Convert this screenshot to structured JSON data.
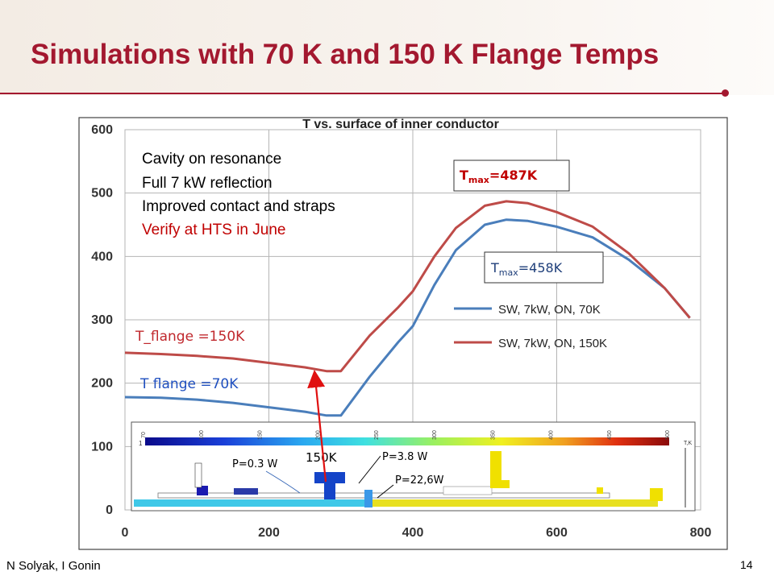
{
  "slide": {
    "title": "Simulations with 70 K and 150 K Flange Temps",
    "author": "N Solyak, I Gonin",
    "page_number": "14"
  },
  "notes": {
    "line1": "Cavity on resonance",
    "line2": "Full 7 kW reflection",
    "line3": "Improved contact and straps",
    "line4": "Verify at HTS in June"
  },
  "annotations": {
    "tmax_150_label": "T",
    "tmax_150_sub": "max",
    "tmax_150_value": "=487K",
    "tmax_70_label": "T",
    "tmax_70_sub": "max",
    "tmax_70_value": "=458K",
    "tflange_150": "T_flange =150K",
    "tflange_70": "T flange =70K",
    "label_150k": "150K",
    "p1": "P=0.3 W",
    "p2": "P=3.8 W",
    "p3": "P=22,6W"
  },
  "colors": {
    "title": "#a3182f",
    "series_70k": "#4a7ebb",
    "series_150k": "#be4b48",
    "note_highlight": "#c00000",
    "tflange_70_text": "#1f4fbf"
  },
  "chart_data": {
    "type": "line",
    "title": "T vs. surface of inner conductor",
    "xlim": [
      0,
      800
    ],
    "ylim": [
      0,
      600
    ],
    "x_ticks": [
      "0",
      "200",
      "400",
      "600",
      "800"
    ],
    "y_ticks": [
      "0",
      "100",
      "200",
      "300",
      "400",
      "500",
      "600"
    ],
    "grid": true,
    "legend_position": "right",
    "series": [
      {
        "name": "SW, 7kW, ON, 70K",
        "x": [
          0,
          50,
          100,
          150,
          200,
          250,
          280,
          300,
          340,
          380,
          400,
          430,
          460,
          500,
          530,
          560,
          600,
          650,
          700,
          750,
          785
        ],
        "y": [
          178,
          177,
          174,
          169,
          162,
          155,
          149,
          149,
          210,
          265,
          290,
          355,
          410,
          450,
          458,
          456,
          447,
          430,
          395,
          350,
          303
        ]
      },
      {
        "name": "SW, 7kW, ON, 150K",
        "x": [
          0,
          50,
          100,
          150,
          200,
          250,
          280,
          300,
          340,
          380,
          400,
          430,
          460,
          500,
          530,
          560,
          600,
          650,
          700,
          750,
          785
        ],
        "y": [
          248,
          246,
          243,
          239,
          232,
          225,
          219,
          219,
          275,
          320,
          345,
          400,
          445,
          480,
          487,
          484,
          470,
          447,
          405,
          350,
          303
        ]
      }
    ]
  },
  "colorbar": {
    "tick_labels": [
      "70",
      "100",
      "150",
      "200",
      "250",
      "300",
      "350",
      "400",
      "450",
      "500"
    ],
    "end_label_left": "1",
    "end_label_right": "T,K"
  }
}
